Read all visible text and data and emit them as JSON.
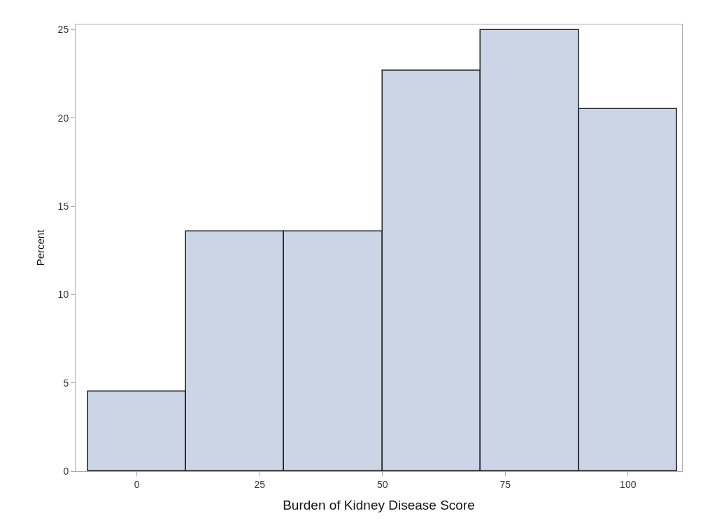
{
  "chart_data": {
    "type": "histogram",
    "xlabel": "Burden of Kidney Disease Score",
    "ylabel": "Percent",
    "bins": [
      -10,
      10,
      30,
      50,
      70,
      90,
      110
    ],
    "values": [
      4.5,
      13.6,
      13.6,
      22.7,
      25,
      20.5
    ],
    "color": "#cbd5e5",
    "xlim": [
      -12.5,
      111
    ],
    "xticks": [
      0,
      25,
      50,
      75,
      100
    ],
    "ylim": [
      0,
      25.3
    ],
    "yticks": [
      0,
      5,
      10,
      15,
      20,
      25
    ]
  }
}
